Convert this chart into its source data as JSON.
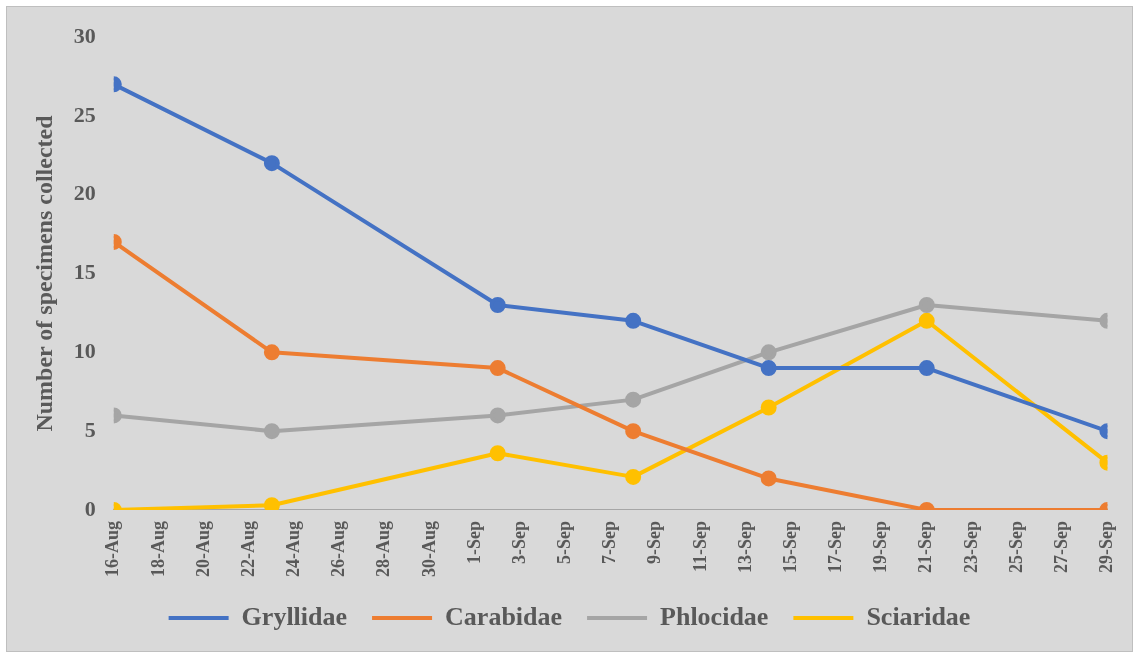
{
  "chart_data": {
    "type": "line",
    "ylabel": "Number of specimens collected",
    "x": [
      "--08-16",
      "--08-23",
      "--09-02",
      "--09-08",
      "--09-14",
      "--09-21",
      "--09-29"
    ],
    "series": [
      {
        "name": "Gryllidae",
        "color": "#4472c4",
        "values": [
          27,
          22,
          13,
          12,
          9,
          9,
          5
        ]
      },
      {
        "name": "Carabidae",
        "color": "#ed7d31",
        "values": [
          17,
          10,
          9,
          5,
          2,
          0,
          0
        ]
      },
      {
        "name": "Phlocidae",
        "color": "#a5a5a5",
        "values": [
          6,
          5,
          6,
          7,
          10,
          13,
          12
        ]
      },
      {
        "name": "Sciaridae",
        "color": "#ffc000",
        "values": [
          0,
          0.3,
          3.6,
          2.1,
          6.5,
          12,
          3
        ]
      }
    ],
    "xlim": [
      "--08-16",
      "--09-29"
    ],
    "xticks": [
      {
        "value": "--08-16",
        "label": "16-Aug"
      },
      {
        "value": "--08-18",
        "label": "18-Aug"
      },
      {
        "value": "--08-20",
        "label": "20-Aug"
      },
      {
        "value": "--08-22",
        "label": "22-Aug"
      },
      {
        "value": "--08-24",
        "label": "24-Aug"
      },
      {
        "value": "--08-26",
        "label": "26-Aug"
      },
      {
        "value": "--08-28",
        "label": "28-Aug"
      },
      {
        "value": "--08-30",
        "label": "30-Aug"
      },
      {
        "value": "--09-01",
        "label": "1-Sep"
      },
      {
        "value": "--09-03",
        "label": "3-Sep"
      },
      {
        "value": "--09-05",
        "label": "5-Sep"
      },
      {
        "value": "--09-07",
        "label": "7-Sep"
      },
      {
        "value": "--09-09",
        "label": "9-Sep"
      },
      {
        "value": "--09-11",
        "label": "11-Sep"
      },
      {
        "value": "--09-13",
        "label": "13-Sep"
      },
      {
        "value": "--09-15",
        "label": "15-Sep"
      },
      {
        "value": "--09-17",
        "label": "17-Sep"
      },
      {
        "value": "--09-19",
        "label": "19-Sep"
      },
      {
        "value": "--09-21",
        "label": "21-Sep"
      },
      {
        "value": "--09-23",
        "label": "23-Sep"
      },
      {
        "value": "--09-25",
        "label": "25-Sep"
      },
      {
        "value": "--09-27",
        "label": "27-Sep"
      },
      {
        "value": "--09-29",
        "label": "29-Sep"
      }
    ],
    "ylim": [
      0,
      30
    ],
    "yticks": [
      0,
      5,
      10,
      15,
      20,
      25,
      30
    ],
    "grid": false,
    "legend": "bottom",
    "marker": "circle",
    "line_style": "solid"
  }
}
